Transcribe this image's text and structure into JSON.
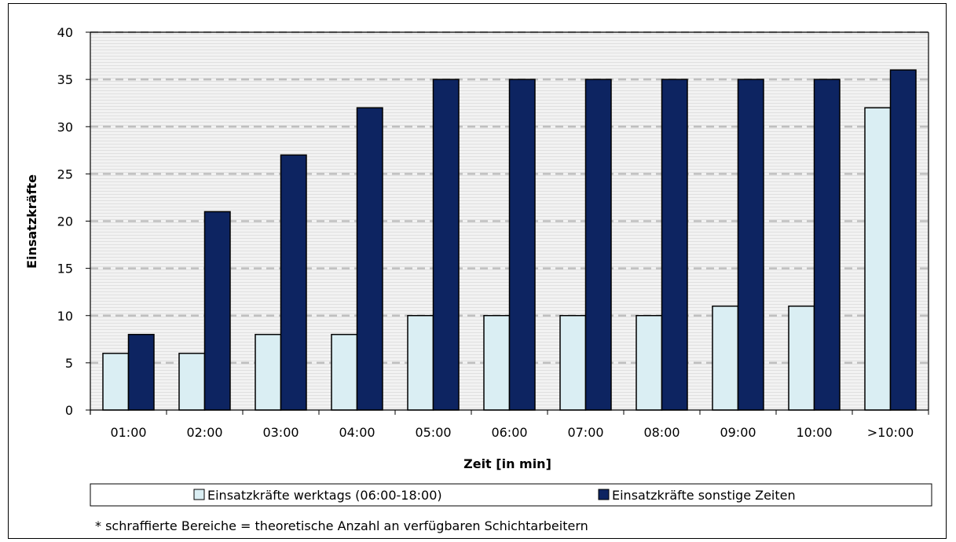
{
  "chart_data": {
    "type": "bar",
    "title": "",
    "xlabel": "Zeit [in min]",
    "ylabel": "Einsatzkräfte",
    "ylim": [
      0,
      40
    ],
    "yticks": [
      0,
      5,
      10,
      15,
      20,
      25,
      30,
      35,
      40
    ],
    "grid": true,
    "legend_position": "bottom",
    "categories": [
      "01:00",
      "02:00",
      "03:00",
      "04:00",
      "05:00",
      "06:00",
      "07:00",
      "08:00",
      "09:00",
      "10:00",
      ">10:00"
    ],
    "series": [
      {
        "name": "Einsatzkräfte werktags (06:00-18:00)",
        "color": "#daeef3",
        "values": [
          6,
          6,
          8,
          8,
          10,
          10,
          10,
          10,
          11,
          11,
          32
        ]
      },
      {
        "name": "Einsatzkräfte sonstige Zeiten",
        "color": "#0d2461",
        "values": [
          8,
          21,
          27,
          32,
          35,
          35,
          35,
          35,
          35,
          35,
          36
        ]
      }
    ],
    "hatched_area_color": "#f2f2f2",
    "footnote": "* schraffierte Bereiche = theoretische Anzahl an verfügbaren Schichtarbeitern"
  }
}
